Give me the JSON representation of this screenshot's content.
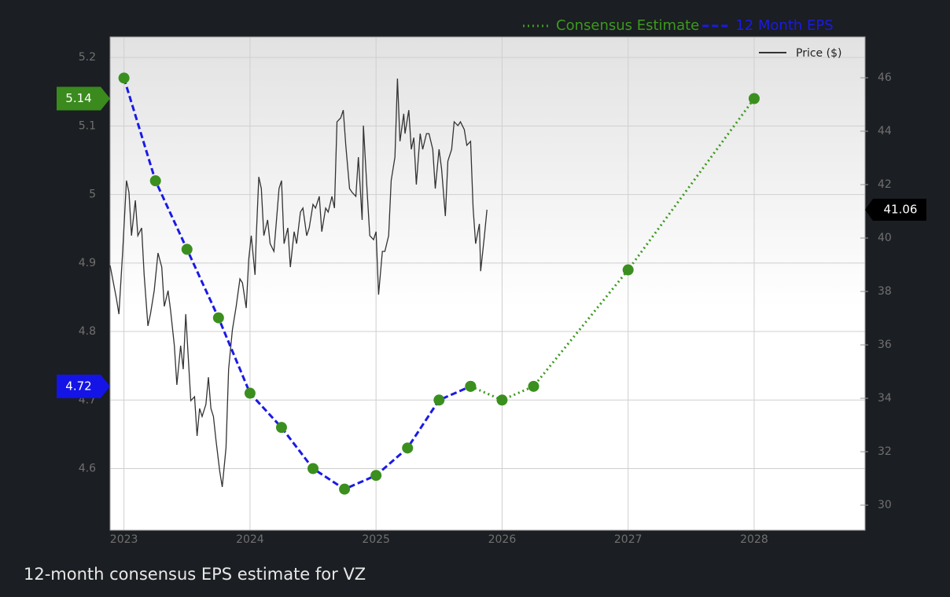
{
  "caption": "12-month consensus EPS estimate for VZ",
  "chart_data": {
    "type": "line",
    "xlim": [
      2022.89,
      2028.88
    ],
    "xticks": [
      2023,
      2024,
      2025,
      2026,
      2027,
      2028
    ],
    "ylim": [
      4.51,
      5.23
    ],
    "yticks": [
      4.6,
      4.7,
      4.8,
      4.9,
      5,
      5.1,
      5.2
    ],
    "y2lim": [
      29.06,
      47.53
    ],
    "y2ticks": [
      30,
      32,
      34,
      36,
      38,
      40,
      42,
      44,
      46
    ],
    "grid": true,
    "series": [
      {
        "name": "Consensus Estimate",
        "color": "#3c9a1e",
        "style": "dotted",
        "marker_color": "#3b8f1f",
        "legend": "top",
        "x": [
          2025.75,
          2026.0,
          2026.25,
          2027.0,
          2028.0
        ],
        "values": [
          4.72,
          4.7,
          4.72,
          4.89,
          5.14
        ]
      },
      {
        "name": "12 Month EPS",
        "color": "#1a1ae6",
        "style": "dashed",
        "marker_color": "#3b8f1f",
        "legend": "top",
        "x": [
          2023.0,
          2023.25,
          2023.5,
          2023.75,
          2024.0,
          2024.25,
          2024.5,
          2024.75,
          2025.0,
          2025.25,
          2025.5,
          2025.75
        ],
        "values": [
          5.17,
          5.02,
          4.92,
          4.82,
          4.71,
          4.66,
          4.6,
          4.57,
          4.59,
          4.63,
          4.7,
          4.72
        ]
      },
      {
        "name": "Price ($)",
        "color": "#333333",
        "style": "solid",
        "axis": "y2",
        "legend": "inside",
        "x": [
          2022.89,
          2022.94,
          2022.96,
          2022.99,
          2023.02,
          2023.04,
          2023.06,
          2023.09,
          2023.11,
          2023.14,
          2023.16,
          2023.19,
          2023.21,
          2023.24,
          2023.27,
          2023.3,
          2023.32,
          2023.35,
          2023.37,
          2023.4,
          2023.42,
          2023.45,
          2023.47,
          2023.49,
          2023.51,
          2023.53,
          2023.56,
          2023.58,
          2023.6,
          2023.62,
          2023.65,
          2023.67,
          2023.69,
          2023.71,
          2023.73,
          2023.76,
          2023.78,
          2023.81,
          2023.83,
          2023.86,
          2023.89,
          2023.92,
          2023.94,
          2023.97,
          2023.99,
          2024.01,
          2024.04,
          2024.05,
          2024.07,
          2024.09,
          2024.11,
          2024.14,
          2024.16,
          2024.19,
          2024.21,
          2024.23,
          2024.25,
          2024.27,
          2024.3,
          2024.32,
          2024.35,
          2024.37,
          2024.4,
          2024.42,
          2024.45,
          2024.47,
          2024.5,
          2024.52,
          2024.55,
          2024.57,
          2024.6,
          2024.62,
          2024.65,
          2024.67,
          2024.69,
          2024.72,
          2024.74,
          2024.76,
          2024.79,
          2024.81,
          2024.84,
          2024.86,
          2024.89,
          2024.9,
          2024.93,
          2024.95,
          2024.98,
          2025.0,
          2025.02,
          2025.05,
          2025.07,
          2025.1,
          2025.12,
          2025.15,
          2025.17,
          2025.19,
          2025.22,
          2025.23,
          2025.26,
          2025.28,
          2025.3,
          2025.32,
          2025.35,
          2025.37,
          2025.4,
          2025.42,
          2025.45,
          2025.47,
          2025.5,
          2025.52,
          2025.55,
          2025.57,
          2025.6,
          2025.62,
          2025.65,
          2025.67,
          2025.7,
          2025.72,
          2025.75,
          2025.77,
          2025.79,
          2025.82,
          2025.83,
          2025.86,
          2025.88
        ],
        "values": [
          38.97,
          37.74,
          37.15,
          39.5,
          42.15,
          41.71,
          40.09,
          41.41,
          40.09,
          40.38,
          38.62,
          36.71,
          37.15,
          38.03,
          39.44,
          38.91,
          37.44,
          38.03,
          37.29,
          35.97,
          34.5,
          35.97,
          35.09,
          37.15,
          35.53,
          33.91,
          34.06,
          32.59,
          33.62,
          33.32,
          33.77,
          34.79,
          33.62,
          33.32,
          32.44,
          31.27,
          30.68,
          32.15,
          35.09,
          36.56,
          37.44,
          38.47,
          38.32,
          37.38,
          39.21,
          40.09,
          38.62,
          40.09,
          42.29,
          41.85,
          40.09,
          40.68,
          39.79,
          39.5,
          40.68,
          41.85,
          42.15,
          39.79,
          40.38,
          38.91,
          40.24,
          39.79,
          40.97,
          41.12,
          40.09,
          40.38,
          41.26,
          41.12,
          41.56,
          40.24,
          41.12,
          40.97,
          41.56,
          41.12,
          44.35,
          44.5,
          44.79,
          43.47,
          41.85,
          41.71,
          41.56,
          43.03,
          40.68,
          44.21,
          41.71,
          40.09,
          39.94,
          40.24,
          37.88,
          39.5,
          39.5,
          40.09,
          42.15,
          43.03,
          45.97,
          43.62,
          44.65,
          43.91,
          44.79,
          43.32,
          43.76,
          42.0,
          43.91,
          43.32,
          43.91,
          43.91,
          43.32,
          41.85,
          43.32,
          42.59,
          40.82,
          42.88,
          43.32,
          44.35,
          44.21,
          44.35,
          44.06,
          43.47,
          43.62,
          41.12,
          39.79,
          40.53,
          38.76,
          40.09,
          41.06
        ]
      }
    ],
    "flags": [
      {
        "value": 5.14,
        "axis": "y",
        "color": "#3a8a1e"
      },
      {
        "value": 4.72,
        "axis": "y",
        "color": "#1414e6"
      },
      {
        "value": 41.06,
        "axis": "y2",
        "color": "#000000"
      }
    ]
  }
}
